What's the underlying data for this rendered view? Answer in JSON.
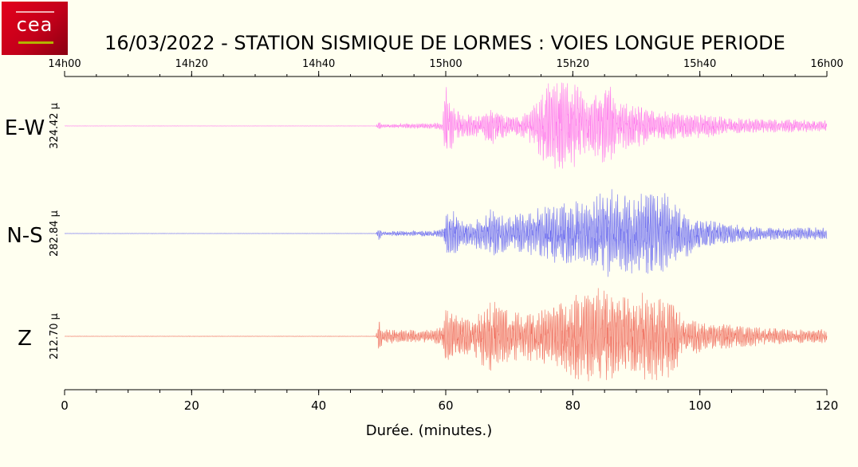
{
  "logo": {
    "text": "cea"
  },
  "chart_data": {
    "type": "line",
    "title": "16/03/2022  -  STATION SISMIQUE DE LORMES : VOIES LONGUE PERIODE",
    "xlabel": "Durée.  (minutes.)",
    "xlim": [
      0,
      120
    ],
    "x_ticks": [
      "0",
      "20",
      "40",
      "60",
      "80",
      "100",
      "120"
    ],
    "top_axis_ticks": [
      "14h00",
      "14h20",
      "14h40",
      "15h00",
      "15h20",
      "15h40",
      "16h00"
    ],
    "grid": false,
    "series": [
      {
        "name": "E-W",
        "scale_label": "324.42 µ",
        "color": "#ff77ee",
        "envelope": [
          [
            0,
            0.003
          ],
          [
            49,
            0.003
          ],
          [
            49.5,
            0.12
          ],
          [
            50,
            0.03
          ],
          [
            53,
            0.05
          ],
          [
            58,
            0.06
          ],
          [
            59.5,
            0.08
          ],
          [
            60,
            0.95
          ],
          [
            61,
            0.45
          ],
          [
            63,
            0.25
          ],
          [
            65,
            0.22
          ],
          [
            67,
            0.4
          ],
          [
            70,
            0.25
          ],
          [
            72,
            0.25
          ],
          [
            74,
            0.45
          ],
          [
            76,
            0.9
          ],
          [
            78,
            0.95
          ],
          [
            80,
            1.0
          ],
          [
            82,
            0.55
          ],
          [
            84,
            0.75
          ],
          [
            85.5,
            0.95
          ],
          [
            87,
            0.55
          ],
          [
            90,
            0.45
          ],
          [
            92,
            0.35
          ],
          [
            95,
            0.3
          ],
          [
            100,
            0.25
          ],
          [
            105,
            0.18
          ],
          [
            110,
            0.14
          ],
          [
            115,
            0.14
          ],
          [
            120,
            0.12
          ]
        ]
      },
      {
        "name": "N-S",
        "scale_label": "282.84 µ",
        "color": "#6b6bf0",
        "envelope": [
          [
            0,
            0.003
          ],
          [
            49,
            0.003
          ],
          [
            49.5,
            0.15
          ],
          [
            50,
            0.04
          ],
          [
            53,
            0.06
          ],
          [
            58,
            0.06
          ],
          [
            59.5,
            0.1
          ],
          [
            60,
            0.65
          ],
          [
            61,
            0.5
          ],
          [
            63,
            0.25
          ],
          [
            66,
            0.35
          ],
          [
            67,
            0.5
          ],
          [
            70,
            0.35
          ],
          [
            73,
            0.5
          ],
          [
            75,
            0.55
          ],
          [
            77,
            0.6
          ],
          [
            80,
            0.7
          ],
          [
            82,
            0.6
          ],
          [
            84,
            0.8
          ],
          [
            86,
            0.95
          ],
          [
            88,
            0.8
          ],
          [
            90,
            0.9
          ],
          [
            92,
            0.95
          ],
          [
            94,
            0.9
          ],
          [
            96,
            0.6
          ],
          [
            100,
            0.35
          ],
          [
            105,
            0.2
          ],
          [
            110,
            0.14
          ],
          [
            115,
            0.13
          ],
          [
            120,
            0.12
          ]
        ]
      },
      {
        "name": "Z",
        "scale_label": "212.70 µ",
        "color": "#f07060",
        "envelope": [
          [
            0,
            0.004
          ],
          [
            49,
            0.004
          ],
          [
            49.5,
            0.35
          ],
          [
            50,
            0.15
          ],
          [
            53,
            0.12
          ],
          [
            58,
            0.12
          ],
          [
            59.5,
            0.2
          ],
          [
            60,
            0.55
          ],
          [
            62,
            0.4
          ],
          [
            64,
            0.35
          ],
          [
            67,
            0.7
          ],
          [
            70,
            0.5
          ],
          [
            73,
            0.45
          ],
          [
            76,
            0.55
          ],
          [
            78,
            0.7
          ],
          [
            80,
            0.85
          ],
          [
            82,
            0.85
          ],
          [
            84,
            0.9
          ],
          [
            85.5,
            1.0
          ],
          [
            88,
            0.8
          ],
          [
            90,
            0.75
          ],
          [
            92,
            0.9
          ],
          [
            94,
            0.85
          ],
          [
            96,
            0.75
          ],
          [
            97,
            0.4
          ],
          [
            100,
            0.3
          ],
          [
            105,
            0.22
          ],
          [
            110,
            0.18
          ],
          [
            115,
            0.13
          ],
          [
            120,
            0.13
          ]
        ]
      }
    ]
  }
}
